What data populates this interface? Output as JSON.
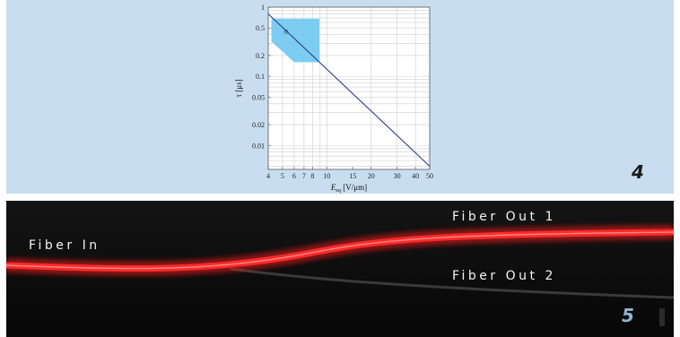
{
  "chart_data": {
    "type": "line",
    "title": "",
    "xlabel": "E_eq [V/μm]",
    "ylabel": "τ [μs]",
    "xscale": "log",
    "yscale": "log",
    "xlim": [
      4,
      50
    ],
    "ylim": [
      0.0045,
      1
    ],
    "xticks": [
      4,
      5,
      6,
      7,
      8,
      10,
      15,
      20,
      30,
      40,
      50
    ],
    "yticks": [
      1,
      0.5,
      0.2,
      0.1,
      0.05,
      0.02,
      0.01
    ],
    "grid": true,
    "series": [
      {
        "x": [
          4,
          50
        ],
        "y": [
          0.8,
          0.005
        ]
      }
    ],
    "region": {
      "color": "#6ec8f0",
      "polygon": [
        [
          4.2,
          0.68
        ],
        [
          8.9,
          0.68
        ],
        [
          8.9,
          0.16
        ],
        [
          6.0,
          0.16
        ],
        [
          4.2,
          0.32
        ]
      ]
    },
    "marker": {
      "x": 5.3,
      "y": 0.44
    }
  },
  "figure_number_top": "4",
  "fiber": {
    "in_label": "Fiber In",
    "out1_label": "Fiber Out 1",
    "out2_label": "Fiber Out 2",
    "figure_number": "5",
    "glow_color": "#ff1a1a"
  }
}
